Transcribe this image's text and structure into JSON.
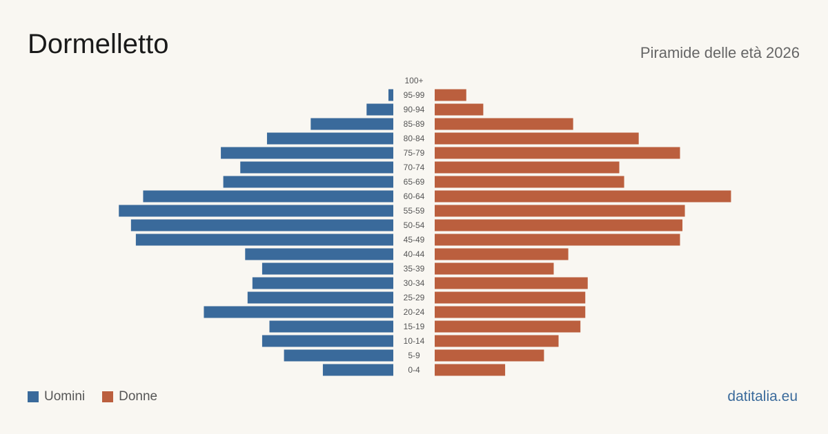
{
  "header": {
    "title": "Dormelletto",
    "subtitle": "Piramide delle età 2026"
  },
  "legend": {
    "men_label": "Uomini",
    "women_label": "Donne"
  },
  "footer": {
    "source": "datitalia.eu"
  },
  "colors": {
    "men": "#3a6a9b",
    "women": "#bb5f3e",
    "background": "#f9f7f2"
  },
  "chart_data": {
    "type": "bar",
    "orientation": "horizontal-pyramid",
    "categories": [
      "100+",
      "95-99",
      "90-94",
      "85-89",
      "80-84",
      "75-79",
      "70-74",
      "65-69",
      "60-64",
      "55-59",
      "50-54",
      "45-49",
      "40-44",
      "35-39",
      "30-34",
      "25-29",
      "20-24",
      "15-19",
      "10-14",
      "5-9",
      "0-4"
    ],
    "series": [
      {
        "name": "Uomini",
        "values": [
          0,
          2,
          11,
          34,
          52,
          71,
          63,
          70,
          103,
          113,
          108,
          106,
          61,
          54,
          58,
          60,
          78,
          51,
          54,
          45,
          29
        ]
      },
      {
        "name": "Donne",
        "values": [
          0,
          13,
          20,
          57,
          84,
          101,
          76,
          78,
          122,
          103,
          102,
          101,
          55,
          49,
          63,
          62,
          62,
          60,
          51,
          45,
          29
        ]
      }
    ],
    "grid": false,
    "legend_position": "bottom-left"
  }
}
